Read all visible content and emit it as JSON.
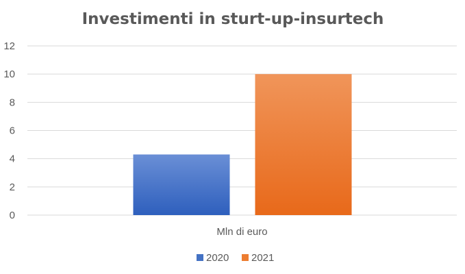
{
  "chart_data": {
    "type": "bar",
    "title": "Investimenti in sturt-up-insurtech",
    "categories": [
      "Mln di euro"
    ],
    "series": [
      {
        "name": "2020",
        "values": [
          4.3
        ],
        "color": "#4472C4"
      },
      {
        "name": "2021",
        "values": [
          10
        ],
        "color": "#ED7D31"
      }
    ],
    "yticks": [
      0,
      2,
      4,
      6,
      8,
      10,
      12
    ],
    "ylim": [
      0,
      12
    ],
    "grid": true,
    "legend": "bottom"
  }
}
